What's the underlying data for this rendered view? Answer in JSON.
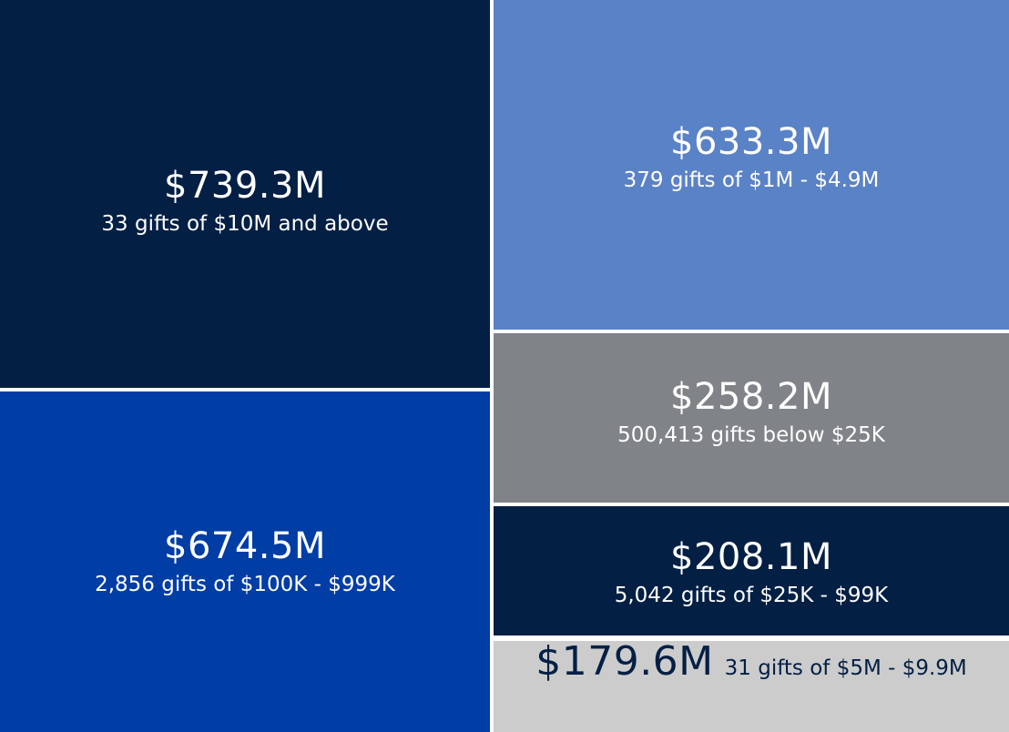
{
  "chart_data": {
    "type": "treemap",
    "title": "",
    "unit": "USD millions",
    "items": [
      {
        "id": "10m-and-above",
        "amount_label": "$739.3M",
        "value": 739.3,
        "gift_count": 33,
        "description": "33 gifts of $10M and above",
        "color": "#031f44"
      },
      {
        "id": "100k-999k",
        "amount_label": "$674.5M",
        "value": 674.5,
        "gift_count": 2856,
        "description": "2,856 gifts of $100K - $999K",
        "color": "#003da5"
      },
      {
        "id": "1m-4.9m",
        "amount_label": "$633.3M",
        "value": 633.3,
        "gift_count": 379,
        "description": "379 gifts of $1M - $4.9M",
        "color": "#5a82c6"
      },
      {
        "id": "below-25k",
        "amount_label": "$258.2M",
        "value": 258.2,
        "gift_count": 500413,
        "description": "500,413 gifts below $25K",
        "color": "#808488"
      },
      {
        "id": "25k-99k",
        "amount_label": "$208.1M",
        "value": 208.1,
        "gift_count": 5042,
        "description": "5,042 gifts of $25K - $99K",
        "color": "#031f44"
      },
      {
        "id": "5m-9.9m",
        "amount_label": "$179.6M",
        "value": 179.6,
        "gift_count": 31,
        "description": "31 gifts of $5M - $9.9M",
        "color": "#cccccc"
      }
    ]
  },
  "tiles": {
    "t10m": {
      "amount": "$739.3M",
      "desc": "33 gifts of $10M and above"
    },
    "t100k": {
      "amount": "$674.5M",
      "desc": "2,856 gifts of $100K - $999K"
    },
    "t1m": {
      "amount": "$633.3M",
      "desc": "379 gifts of $1M - $4.9M"
    },
    "tbelow": {
      "amount": "$258.2M",
      "desc": "500,413 gifts below $25K"
    },
    "t25k": {
      "amount": "$208.1M",
      "desc": "5,042 gifts of $25K - $99K"
    },
    "t5m": {
      "amount": "$179.6M",
      "desc": "31 gifts of $5M - $9.9M"
    }
  }
}
